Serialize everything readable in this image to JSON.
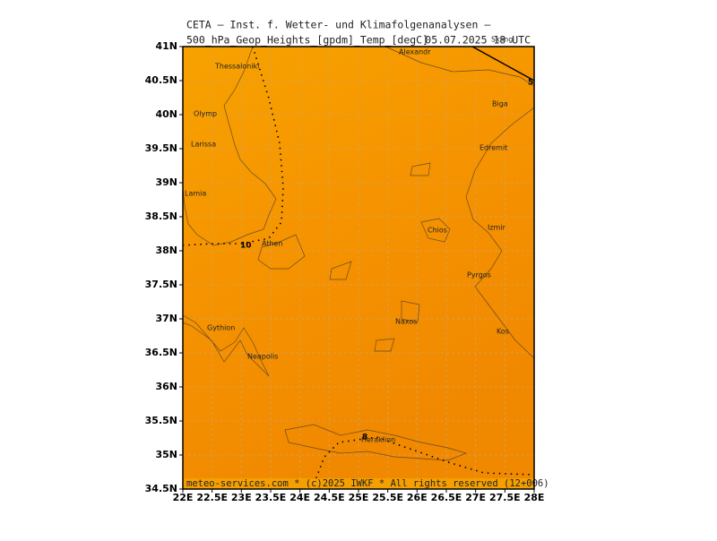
{
  "header": {
    "line1": "CETA – Inst. f. Wetter- und Klimafolgenanalysen –",
    "line2": "500_hPa_Geop_Heights_[gpdm]_Temp_[degC]",
    "date": "05.07.2025 18 UTC",
    "overlay": "Skiing"
  },
  "axes": {
    "lon": [
      {
        "value": 22,
        "label": "22E"
      },
      {
        "value": 22.5,
        "label": "22.5E"
      },
      {
        "value": 23,
        "label": "23E"
      },
      {
        "value": 23.5,
        "label": "23.5E"
      },
      {
        "value": 24,
        "label": "24E"
      },
      {
        "value": 24.5,
        "label": "24.5E"
      },
      {
        "value": 25,
        "label": "25E"
      },
      {
        "value": 25.5,
        "label": "25.5E"
      },
      {
        "value": 26,
        "label": "26E"
      },
      {
        "value": 26.5,
        "label": "26.5E"
      },
      {
        "value": 27,
        "label": "27E"
      },
      {
        "value": 27.5,
        "label": "27.5E"
      },
      {
        "value": 28,
        "label": "28E"
      }
    ],
    "lat": [
      {
        "value": 34.5,
        "label": "34.5N"
      },
      {
        "value": 35,
        "label": "35N"
      },
      {
        "value": 35.5,
        "label": "35.5N"
      },
      {
        "value": 36,
        "label": "36N"
      },
      {
        "value": 36.5,
        "label": "36.5N"
      },
      {
        "value": 37,
        "label": "37N"
      },
      {
        "value": 37.5,
        "label": "37.5N"
      },
      {
        "value": 38,
        "label": "38N"
      },
      {
        "value": 38.5,
        "label": "38.5N"
      },
      {
        "value": 39,
        "label": "39N"
      },
      {
        "value": 39.5,
        "label": "39.5N"
      },
      {
        "value": 40,
        "label": "40N"
      },
      {
        "value": 40.5,
        "label": "40.5N"
      },
      {
        "value": 41,
        "label": "41N"
      }
    ]
  },
  "cities": [
    "Thessaloniki",
    "Alexandr",
    "Olymp",
    "Larissa",
    "Lamia",
    "Athen",
    "Biga",
    "Edremit",
    "Izmir",
    "Chios",
    "Pyrgos",
    "Naxos",
    "Kos",
    "Gythion",
    "Neapolis",
    "Heraklion"
  ],
  "contour_labels": [
    "10",
    "8",
    "5"
  ],
  "footer": "meteo-services.com * (c)2025 IWKF * All rights reserved (12+006)"
}
